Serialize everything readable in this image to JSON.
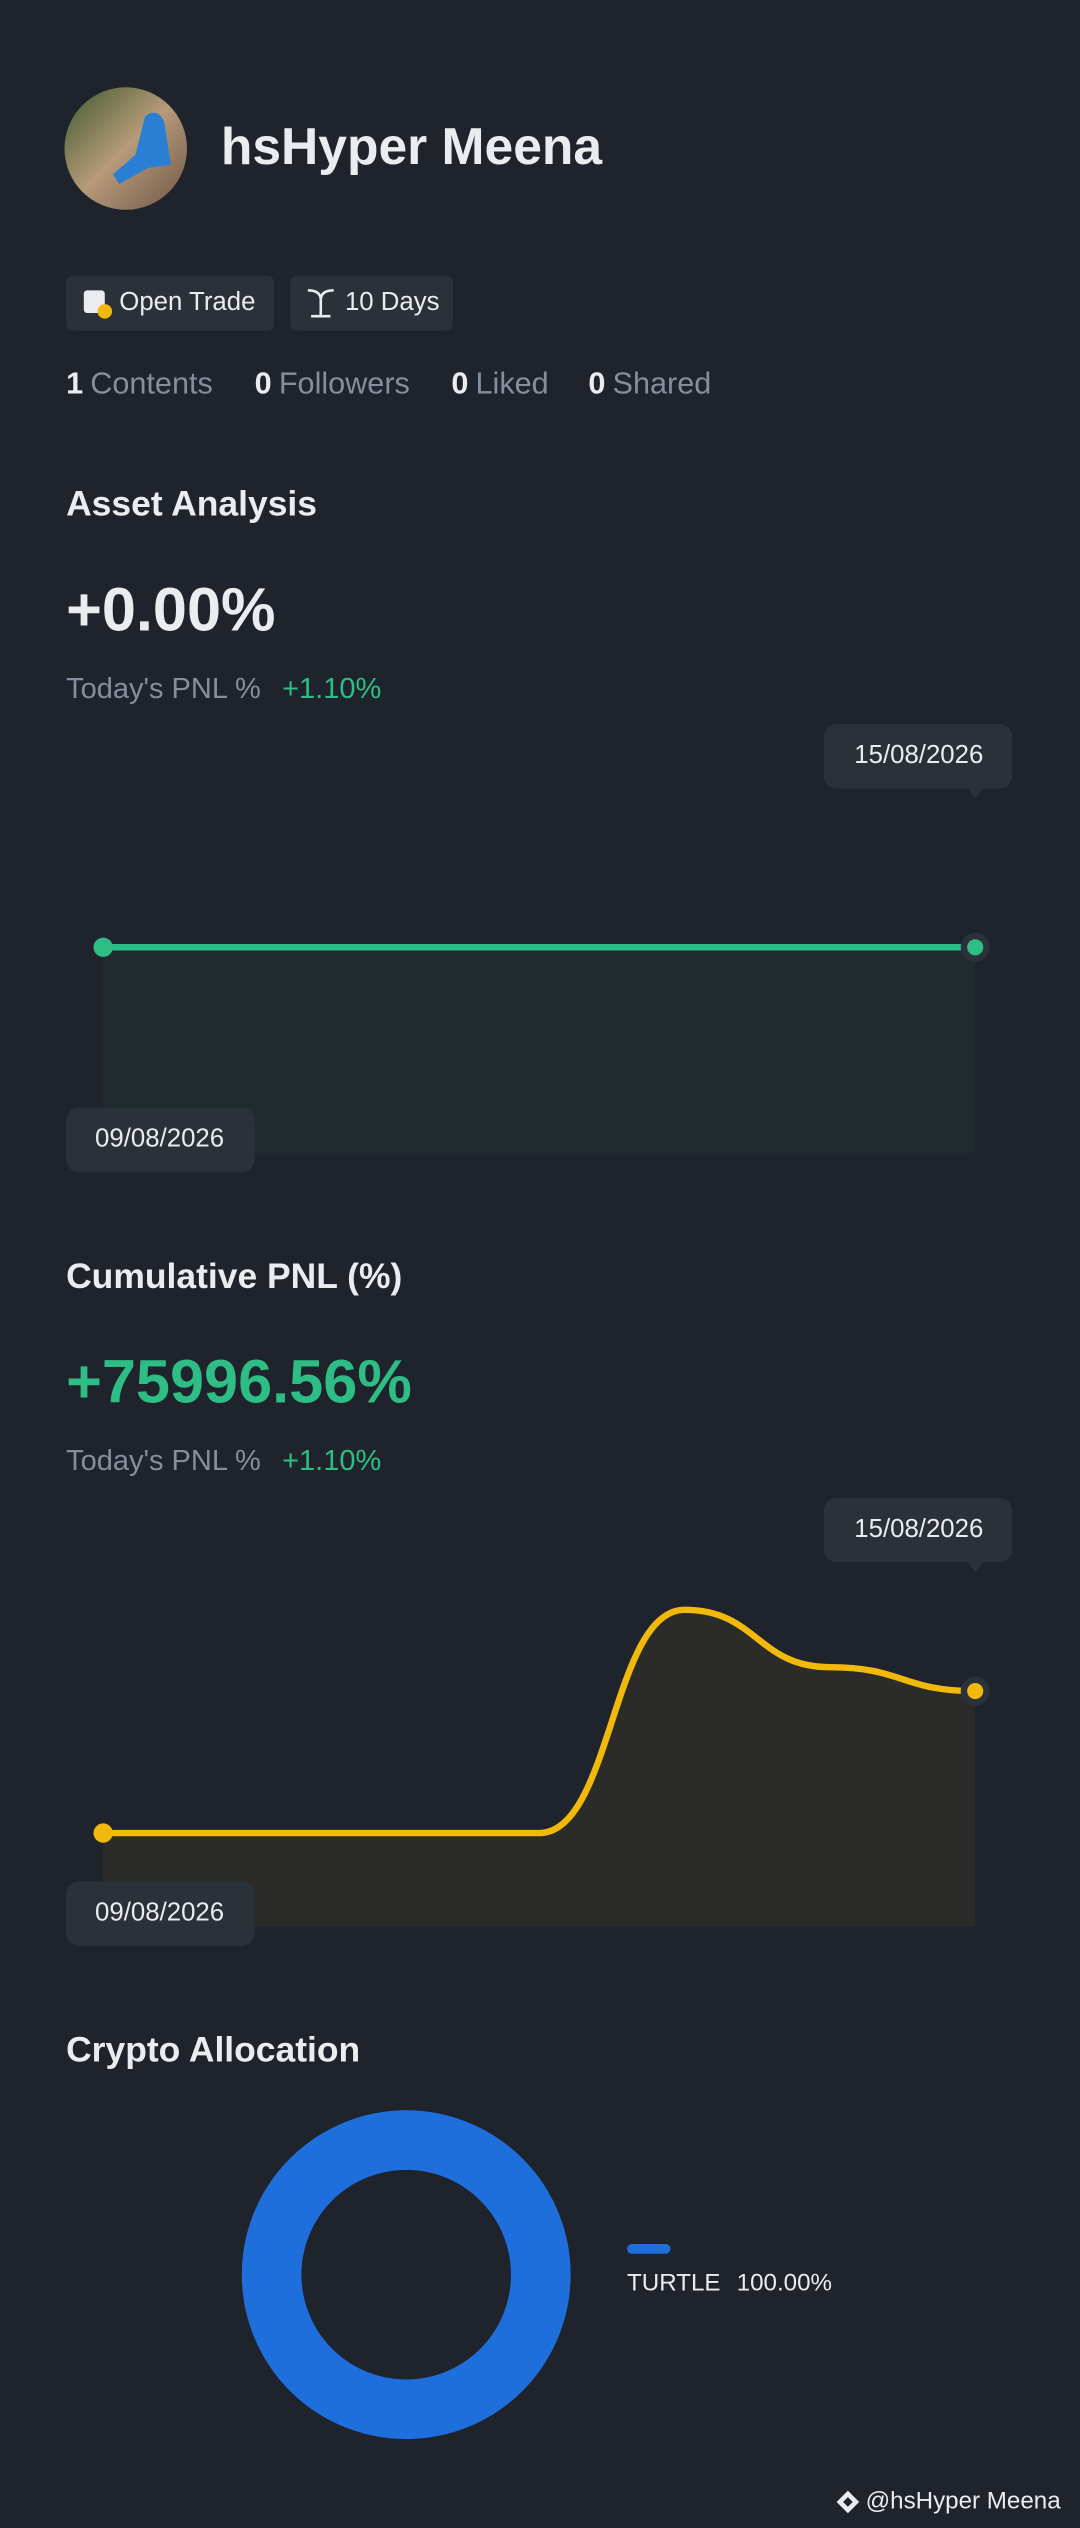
{
  "profile": {
    "name": "hsHyper Meena",
    "badges": [
      "Open Trade",
      "10 Days"
    ]
  },
  "stats": [
    {
      "value": 1,
      "label": "Contents"
    },
    {
      "value": 0,
      "label": "Followers"
    },
    {
      "value": 0,
      "label": "Liked"
    },
    {
      "value": 0,
      "label": "Shared"
    }
  ],
  "asset_analysis": {
    "title": "Asset Analysis",
    "value": "+0.00%",
    "pnl_label": "Today's PNL %",
    "pnl_value": "+1.10%",
    "chart_data": {
      "type": "line",
      "categories": [
        "09/08/2026",
        null,
        null,
        null,
        null,
        null,
        "15/08/2026"
      ],
      "values": [
        0,
        0,
        0,
        0,
        0,
        0,
        0
      ],
      "ylim": [
        -1,
        1
      ],
      "color": "#2ebd85"
    }
  },
  "cumulative_pnl": {
    "title": "Cumulative PNL (%)",
    "value": "+75996.56%",
    "pnl_label": "Today's PNL %",
    "pnl_value": "+1.10%",
    "chart_data": {
      "type": "line",
      "categories": [
        "09/08/2026",
        null,
        null,
        null,
        null,
        null,
        "15/08/2026"
      ],
      "values": [
        0,
        0,
        0,
        0,
        119500,
        88800,
        75996.56
      ],
      "ylim": [
        -50000,
        170000
      ],
      "color": "#f0b90b"
    }
  },
  "crypto_allocation": {
    "title": "Crypto Allocation",
    "chart_data": {
      "type": "donut",
      "series": [
        {
          "name": "TURTLE",
          "color": "#1e6fdc",
          "values": [
            100
          ],
          "value_labels": [
            "100.00%"
          ]
        }
      ]
    }
  },
  "footer": "@hsHyper Meena"
}
